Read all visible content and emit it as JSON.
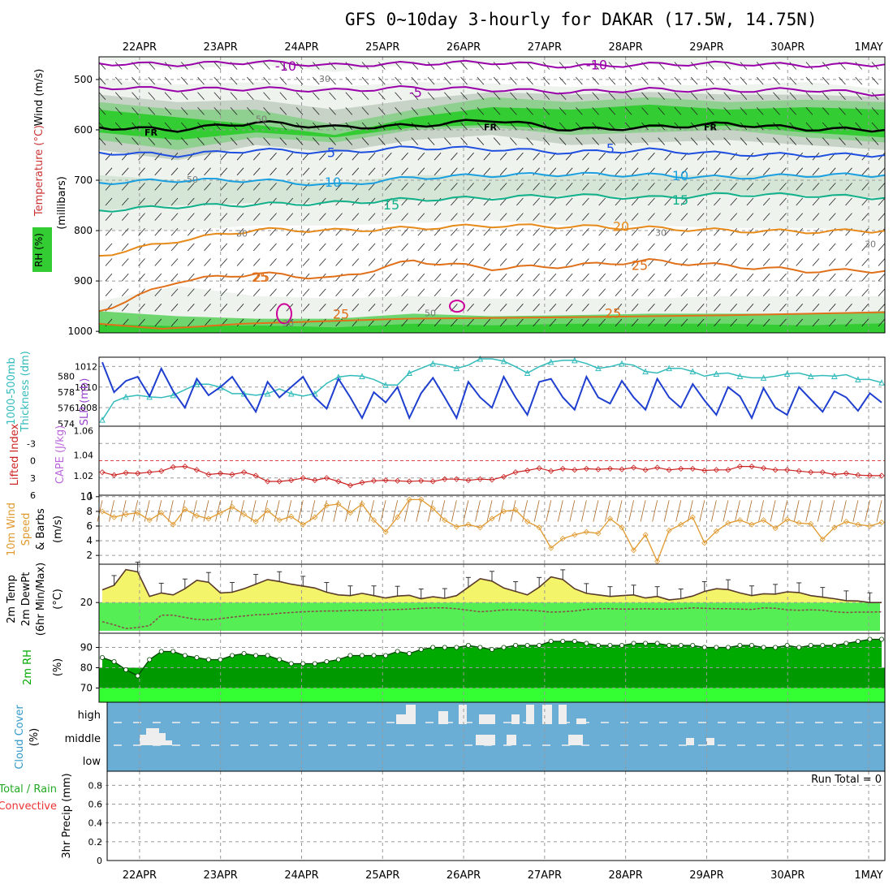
{
  "title": "GFS 0~10day 3-hourly for DAKAR (17.5W, 14.75N)",
  "colors": {
    "rh_green": "#33cc33",
    "rh_grey": "#c8d3c8",
    "temp_purple": "#9900aa",
    "temp_blue": "#1f4fe0",
    "temp_cyan": "#1aa0e0",
    "temp_teal": "#10b08a",
    "temp_orange": "#e68a1a",
    "temp_dkorange": "#e0701a",
    "slp_blue": "#1f3fd0",
    "thick_cyan": "#33bbbb",
    "li_red": "#cc2222",
    "wind_orange": "#e09a30",
    "temp_fill": "#f4f46a",
    "dew_fill": "#55ee55",
    "rh2m_fill": "#009900",
    "cloud_blue": "#6aaed6",
    "tmp_line": "#5a3a2a"
  },
  "chart_data": [
    {
      "type": "contour",
      "panel": "upper-air",
      "ylabel": "(millibars)",
      "yticks": [
        500,
        600,
        700,
        800,
        900,
        1000
      ],
      "legend": {
        "rh": "RH (%)",
        "temperature": "Temperature (°C)",
        "wind": "Wind (m/s)"
      },
      "x_dates": [
        "22APR",
        "23APR",
        "24APR",
        "25APR",
        "26APR",
        "27APR",
        "28APR",
        "29APR",
        "30APR",
        "1MAY"
      ],
      "isotherm_labels": [
        "-10",
        "-10",
        "-5",
        "FR",
        "FR",
        "FR",
        "5",
        "5",
        "10",
        "10",
        "15",
        "15",
        "20",
        "25",
        "25",
        "25",
        "25",
        "25"
      ],
      "isotherms": [
        {
          "label": "-10",
          "p": [
            468,
            470,
            465,
            472,
            468,
            466,
            474,
            470,
            468,
            472,
            470
          ]
        },
        {
          "label": "-5",
          "p": [
            515,
            520,
            518,
            522,
            516,
            520,
            525,
            520,
            522,
            520,
            530
          ]
        },
        {
          "label": "FR",
          "p": [
            595,
            600,
            585,
            595,
            592,
            580,
            600,
            595,
            588,
            598,
            600
          ]
        },
        {
          "label": "5",
          "p": [
            645,
            650,
            640,
            645,
            635,
            638,
            645,
            640,
            648,
            650,
            650
          ]
        },
        {
          "label": "10",
          "p": [
            705,
            700,
            700,
            710,
            695,
            690,
            688,
            690,
            695,
            690,
            690
          ]
        },
        {
          "label": "15",
          "p": [
            760,
            752,
            748,
            745,
            738,
            735,
            730,
            735,
            728,
            730,
            735
          ]
        },
        {
          "label": "20",
          "p": [
            850,
            820,
            798,
            800,
            795,
            790,
            792,
            795,
            800,
            802,
            800
          ]
        },
        {
          "label": "25",
          "p": [
            960,
            900,
            885,
            895,
            860,
            875,
            870,
            860,
            870,
            880,
            880
          ]
        }
      ],
      "rh_levels": [
        "30",
        "50",
        "30",
        "50",
        "30",
        "30",
        "50",
        "30"
      ]
    },
    {
      "type": "line",
      "panel": "slp-thickness",
      "series": [
        {
          "name": "SLP (mb)",
          "axis": "right",
          "values": [
            1012.4,
            1009.5,
            1010.6,
            1011.0,
            1009.1,
            1011.8,
            1009.6,
            1008.0,
            1010.8,
            1009.2,
            1010.0,
            1011.0,
            1009.3,
            1007.6,
            1010.5,
            1009.0,
            1010.0,
            1011.0,
            1009.0,
            1007.9,
            1010.8,
            1009.0,
            1007.0,
            1009.5,
            1008.5,
            1010.0,
            1007.0,
            1009.4,
            1010.9,
            1009.0,
            1007.0,
            1010.5,
            1009.0,
            1008.0,
            1011.0,
            1009.0,
            1007.3,
            1010.5,
            1010.8,
            1009.0,
            1007.8,
            1011.0,
            1009.0,
            1008.4,
            1010.6,
            1009.0,
            1007.8,
            1010.8,
            1009.0,
            1008.0,
            1010.3,
            1008.7,
            1007.3,
            1010.0,
            1009.1,
            1007.0,
            1009.9,
            1008.0,
            1007.3,
            1010.0,
            1008.8,
            1007.6,
            1009.6,
            1009.0,
            1007.7,
            1009.4,
            1008.5
          ]
        },
        {
          "name": "1000-500mb Thickness (dm)",
          "axis": "left",
          "values": [
            574.5,
            576.8,
            577.4,
            577.6,
            577.4,
            577.3,
            577.6,
            578.3,
            579.0,
            579.0,
            578.6,
            577.8,
            577.8,
            577.6,
            577.8,
            578.4,
            577.8,
            577.5,
            577.8,
            579.1,
            579.9,
            580.1,
            580.0,
            579.6,
            578.9,
            578.9,
            580.4,
            581.0,
            581.6,
            581.4,
            581.0,
            581.4,
            582.2,
            582.2,
            581.9,
            581.2,
            580.4,
            581.2,
            581.8,
            582.0,
            582.0,
            581.6,
            581.0,
            581.2,
            581.6,
            581.4,
            580.6,
            580.4,
            581.0,
            581.0,
            580.6,
            580.0,
            580.3,
            580.4,
            580.0,
            579.8,
            579.8,
            580.0,
            580.3,
            580.4,
            580.0,
            580.1,
            580.0,
            580.2,
            579.6,
            579.6,
            579.2
          ]
        }
      ],
      "left_axis": {
        "label": "Thickness (dm)",
        "ticks": [
          574,
          576,
          578,
          580
        ],
        "range": [
          573.7,
          582.4
        ]
      },
      "right_axis": {
        "label": "SLP (mb)",
        "ticks": [
          1008,
          1010,
          1012
        ],
        "range": [
          1006.2,
          1012.9
        ]
      }
    },
    {
      "type": "line",
      "panel": "stability",
      "series": [
        {
          "name": "Lifted Index",
          "values": [
            2.0,
            2.5,
            2.1,
            2.2,
            2.0,
            1.8,
            1.1,
            1.0,
            1.6,
            2.4,
            2.2,
            2.4,
            2.0,
            2.6,
            3.6,
            3.6,
            3.4,
            3.0,
            3.4,
            3.0,
            3.6,
            4.3,
            3.8,
            3.5,
            3.4,
            3.5,
            3.6,
            3.5,
            3.6,
            3.2,
            3.2,
            3.4,
            3.2,
            3.3,
            2.8,
            2.0,
            1.7,
            1.3,
            1.8,
            1.4,
            1.6,
            1.4,
            1.5,
            1.4,
            1.5,
            1.2,
            1.6,
            1.2,
            1.6,
            1.4,
            1.4,
            1.7,
            1.6,
            1.6,
            1.0,
            1.0,
            1.3,
            1.6,
            1.6,
            1.8,
            2.0,
            2.0,
            2.4,
            2.2,
            2.5,
            2.6,
            2.6
          ]
        }
      ],
      "li_ticks": [
        "-3",
        "0",
        "3",
        "6"
      ],
      "cape_axis": {
        "label": "CAPE (J/kg)",
        "ticks": [
          "1.06",
          "1.04",
          "1.02",
          "1"
        ]
      },
      "zero_line_li": 0
    },
    {
      "type": "line",
      "panel": "wind10m",
      "ylabel": "(m/s)",
      "yticks": [
        2,
        4,
        6,
        8,
        10
      ],
      "series": [
        {
          "name": "10m Wind Speed",
          "values": [
            8.0,
            7.2,
            7.6,
            7.8,
            6.8,
            7.8,
            6.2,
            8.3,
            7.4,
            7.0,
            7.8,
            8.6,
            7.6,
            6.6,
            8.1,
            6.8,
            7.3,
            6.2,
            7.2,
            8.8,
            9.0,
            7.8,
            9.0,
            6.8,
            5.2,
            7.2,
            9.6,
            9.6,
            8.4,
            6.8,
            5.9,
            6.2,
            5.8,
            7.0,
            8.0,
            8.2,
            6.6,
            5.8,
            3.0,
            4.3,
            4.8,
            5.2,
            5.0,
            7.0,
            5.8,
            2.7,
            4.8,
            1.2,
            5.4,
            6.2,
            7.2,
            3.7,
            5.3,
            6.4,
            6.8,
            6.2,
            6.8,
            5.7,
            6.9,
            6.4,
            6.3,
            4.2,
            5.8,
            6.6,
            6.2,
            6.0,
            6.5
          ]
        }
      ]
    },
    {
      "type": "area",
      "panel": "temp2m",
      "ylabel": "(°C)",
      "yticks": [
        20
      ],
      "series": [
        {
          "name": "2m Temp",
          "values": [
            23.3,
            24.5,
            28.6,
            28.0,
            21.6,
            22.5,
            22.0,
            23.6,
            25.8,
            25.3,
            22.5,
            22.7,
            23.6,
            24.8,
            26.0,
            25.5,
            24.8,
            24.3,
            23.8,
            22.7,
            22.0,
            21.8,
            22.4,
            21.8,
            21.2,
            21.7,
            21.9,
            21.0,
            21.5,
            21.1,
            21.8,
            24.0,
            26.2,
            25.6,
            23.8,
            22.9,
            22.0,
            24.0,
            26.7,
            26.0,
            23.6,
            22.4,
            22.0,
            21.6,
            21.8,
            22.0,
            21.2,
            21.6,
            20.7,
            21.0,
            21.7,
            22.9,
            23.6,
            23.4,
            22.5,
            21.8,
            22.3,
            22.2,
            22.8,
            22.6,
            21.8,
            21.4,
            21.0,
            20.5,
            20.4,
            20.0,
            20.0
          ]
        },
        {
          "name": "2m DewPt",
          "values": [
            15.0,
            14.2,
            13.2,
            13.5,
            14.0,
            16.7,
            16.7,
            16.1,
            15.6,
            15.5,
            15.8,
            16.2,
            16.5,
            16.8,
            16.9,
            17.2,
            17.4,
            17.6,
            17.7,
            17.8,
            17.8,
            17.9,
            18.0,
            18.0,
            18.1,
            18.2,
            18.3,
            18.5,
            18.6,
            18.6,
            18.4,
            18.0,
            17.6,
            17.8,
            18.1,
            18.1,
            18.0,
            17.8,
            17.5,
            17.6,
            17.8,
            18.2,
            18.4,
            18.4,
            18.3,
            18.3,
            18.4,
            18.3,
            18.3,
            18.4,
            18.6,
            18.5,
            18.4,
            18.4,
            18.3,
            18.2,
            18.6,
            18.5,
            18.1,
            18.0,
            18.1,
            18.0,
            17.6,
            17.4,
            17.5,
            17.5,
            17.6
          ]
        }
      ],
      "range": [
        12,
        30
      ]
    },
    {
      "type": "area",
      "panel": "rh2m",
      "ylabel": "(%)",
      "yticks": [
        70,
        80,
        90
      ],
      "series": [
        {
          "name": "2m RH",
          "values": [
            85,
            83,
            79,
            76,
            84,
            88,
            88,
            86,
            85,
            84,
            84,
            86,
            87,
            86,
            86,
            84,
            82,
            82,
            82,
            83,
            84,
            86,
            86,
            86,
            86,
            88,
            87,
            89,
            90,
            90,
            90,
            91,
            90,
            89,
            90,
            91,
            91,
            91,
            93,
            93,
            93,
            92,
            91,
            91,
            91,
            92,
            92,
            92,
            91,
            91,
            91,
            90,
            90,
            90,
            91,
            91,
            90,
            90,
            91,
            90,
            91,
            91,
            91,
            92,
            93,
            94,
            94
          ]
        }
      ],
      "range": [
        63,
        97
      ]
    },
    {
      "type": "bar",
      "panel": "cloud-cover",
      "ylabel": "(%)",
      "levels": [
        "high",
        "middle",
        "low"
      ]
    },
    {
      "type": "bar",
      "panel": "precip",
      "ylabel": "3hr Precip (mm)",
      "yticks": [
        "0",
        "0.2",
        "0.4",
        "0.6",
        "0.8"
      ],
      "values": [],
      "annotation": "Run Total = 0"
    }
  ],
  "labels": {
    "upper_wind": "Wind (m/s)",
    "upper_temp": "Temperature (°C)",
    "upper_rh": "RH (%)",
    "upper_mb": "(millibars)",
    "thick_left1": "Thickness (dm)",
    "thick_left2": "1000-500mb",
    "slp": "SLP (mb)",
    "li": "Lifted Index",
    "cape": "CAPE (J/kg)",
    "wind10_1": "10m Wind",
    "wind10_2": "Speed",
    "wind10_3": "& Barbs",
    "wind10_units": "(m/s)",
    "t2m_1": "2m Temp",
    "t2m_2": "2m DewPt",
    "t2m_3": "(6hr Min/Max)",
    "t2m_units": "(°C)",
    "rh2m": "2m RH",
    "rh2m_units": "(%)",
    "cloud": "Cloud Cover",
    "cloud_units": "(%)",
    "precip_1": "Total / Rain",
    "precip_2": "Convective",
    "precip_units": "3hr Precip (mm)"
  }
}
